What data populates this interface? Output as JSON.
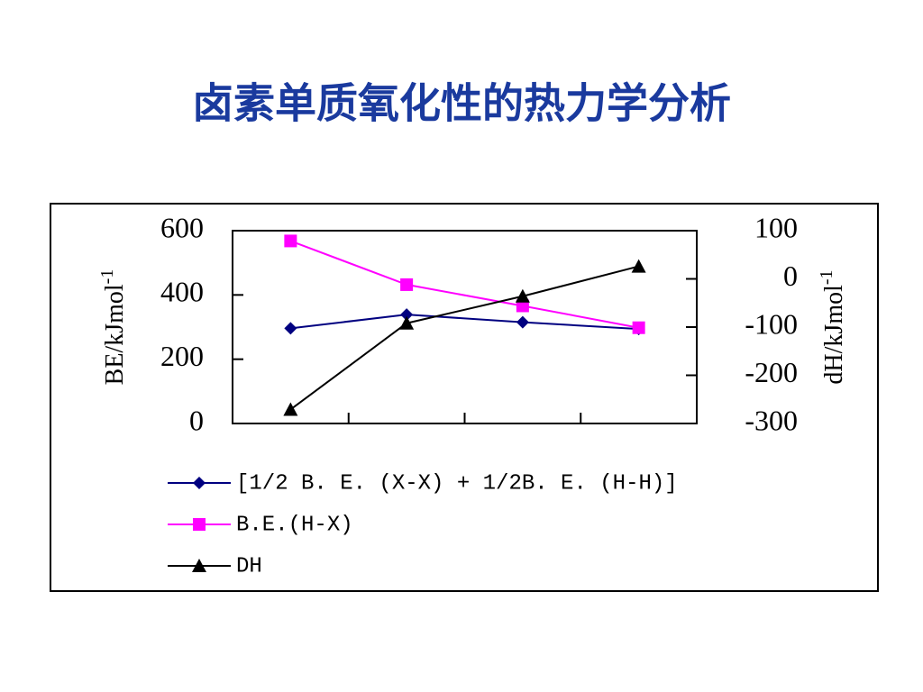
{
  "chart_data": {
    "type": "line",
    "title": "卤素单质氧化性的热力学分析",
    "categories": [
      null,
      null,
      null,
      null
    ],
    "ylabel": "BE/kJmol",
    "ylabel_sup": "-1",
    "y2label": "dH/kJmol",
    "y2label_sup": "-1",
    "ylim": [
      0,
      600
    ],
    "yticks": [
      0,
      200,
      400,
      600
    ],
    "y2lim": [
      -300,
      100
    ],
    "y2ticks": [
      -300,
      -200,
      -100,
      0,
      100
    ],
    "grid": false,
    "legend": "bottom",
    "series": [
      {
        "name": "[1/2 B. E. (X-X) + 1/2B. E. (H-H)]",
        "color": "#000080",
        "marker": "diamond",
        "values": [
          296,
          339,
          315,
          294
        ]
      },
      {
        "name": "B.E.(H-X)",
        "color": "#ff00ff",
        "marker": "square",
        "values": [
          568,
          432,
          366,
          298
        ]
      },
      {
        "name": "DH",
        "color": "#000000",
        "marker": "triangle",
        "axis": "y2",
        "values": [
          -271,
          -92,
          -36,
          26
        ]
      }
    ]
  }
}
